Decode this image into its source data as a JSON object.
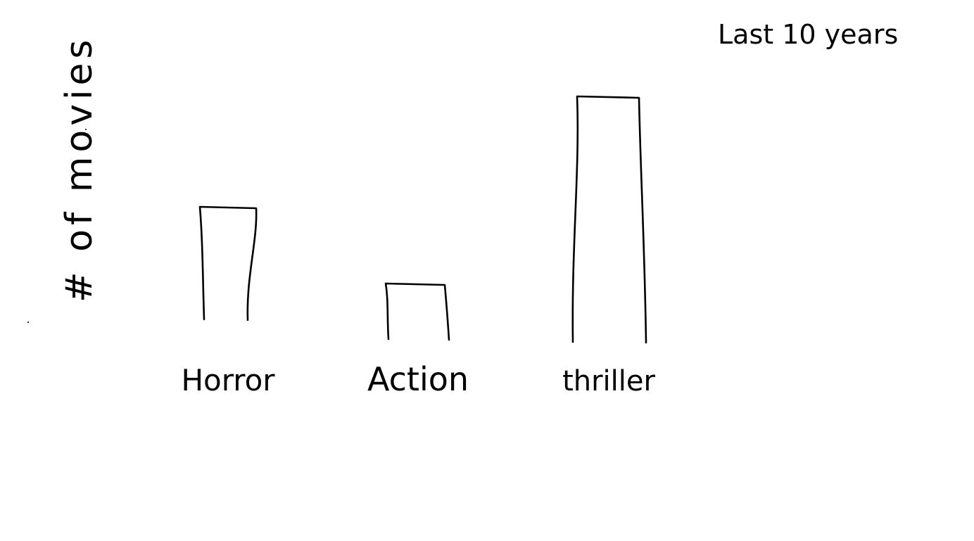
{
  "chart_data": {
    "type": "bar",
    "title": "Last 10 years",
    "xlabel": "",
    "ylabel": "# of movies",
    "categories": [
      "Horror",
      "Action",
      "thriller"
    ],
    "values": [
      6,
      3,
      13
    ],
    "ylim": [
      0,
      14
    ],
    "grid": false,
    "legend": "none"
  },
  "colors": {
    "ink": "#000000",
    "background": "#ffffff"
  }
}
